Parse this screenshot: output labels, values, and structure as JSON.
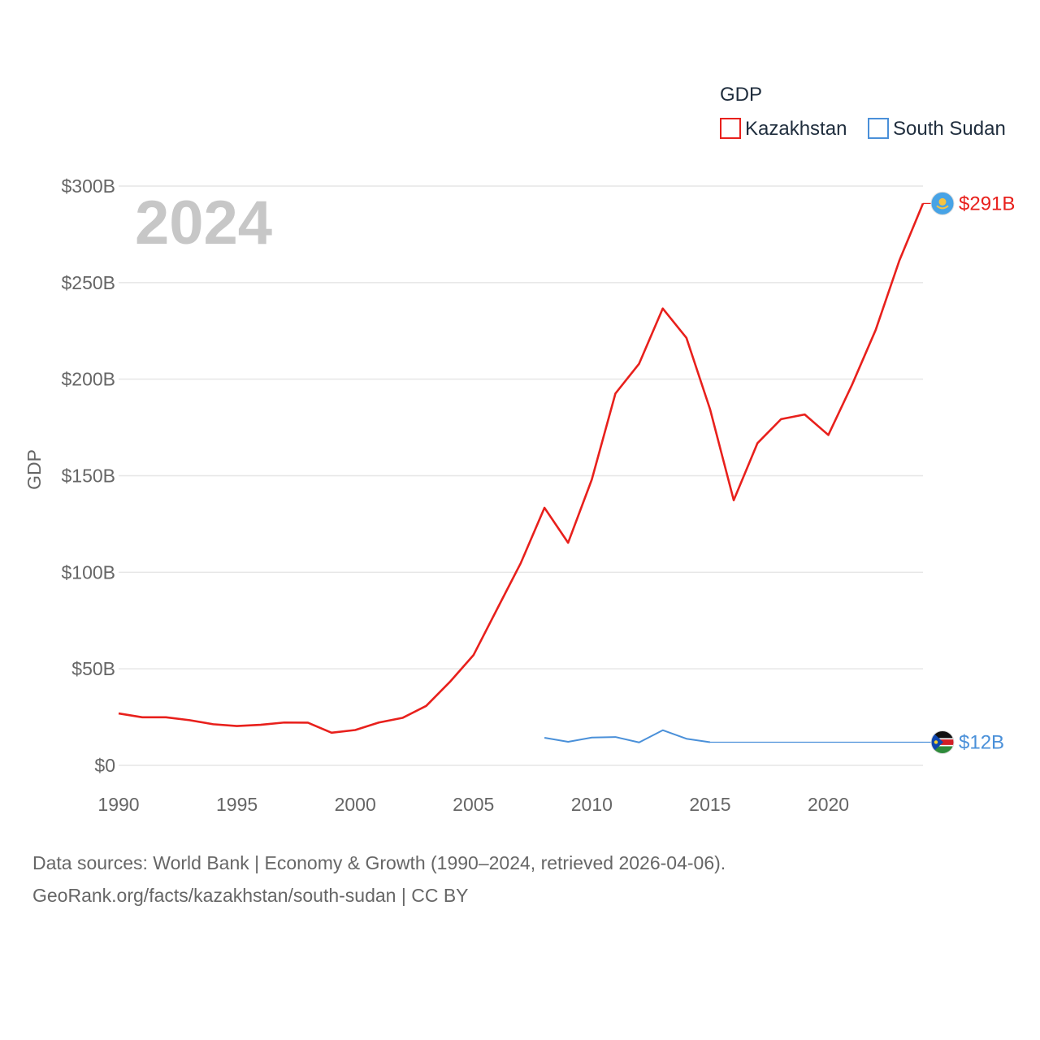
{
  "chart_data": {
    "type": "line",
    "title": "",
    "current_year": "2024",
    "ylabel": "GDP",
    "xlabel": "",
    "xlim": [
      1990,
      2024
    ],
    "ylim": [
      0,
      300
    ],
    "y_unit": "billion USD",
    "x_ticks": [
      "1990",
      "1995",
      "2000",
      "2005",
      "2010",
      "2015",
      "2020"
    ],
    "y_ticks": [
      "$0",
      "$50B",
      "$100B",
      "$150B",
      "$200B",
      "$250B",
      "$300B"
    ],
    "legend_title": "GDP",
    "legend_position": "top-right",
    "grid": true,
    "series": [
      {
        "name": "Kazakhstan",
        "color": "#e8201c",
        "end_label": "$291B",
        "flag_icon": "kazakhstan-flag-icon",
        "x": [
          1990,
          1991,
          1992,
          1993,
          1994,
          1995,
          1996,
          1997,
          1998,
          1999,
          2000,
          2001,
          2002,
          2003,
          2004,
          2005,
          2006,
          2007,
          2008,
          2009,
          2010,
          2011,
          2012,
          2013,
          2014,
          2015,
          2016,
          2017,
          2018,
          2019,
          2020,
          2021,
          2022,
          2023,
          2024
        ],
        "values": [
          26.9,
          24.9,
          24.9,
          23.4,
          21.3,
          20.4,
          21.0,
          22.2,
          22.1,
          16.9,
          18.3,
          22.2,
          24.6,
          30.8,
          43.2,
          57.1,
          81.0,
          104.8,
          133.4,
          115.3,
          148.0,
          192.6,
          208.0,
          236.6,
          221.4,
          184.4,
          137.3,
          166.8,
          179.3,
          181.7,
          171.1,
          197.1,
          225.5,
          261.4,
          291.0
        ]
      },
      {
        "name": "South Sudan",
        "color": "#4a90d9",
        "end_label": "$12B",
        "flag_icon": "south-sudan-flag-icon",
        "x": [
          2008,
          2009,
          2010,
          2011,
          2012,
          2013,
          2014,
          2015
        ],
        "values": [
          14.3,
          12.2,
          14.4,
          14.7,
          11.9,
          18.2,
          13.8,
          12.0
        ],
        "extension_to": 2024
      }
    ]
  },
  "footer": {
    "source_line": "Data sources: World Bank | Economy & Growth (1990–2024, retrieved 2026-04-06).",
    "url_line": "GeoRank.org/facts/kazakhstan/south-sudan | CC BY"
  }
}
